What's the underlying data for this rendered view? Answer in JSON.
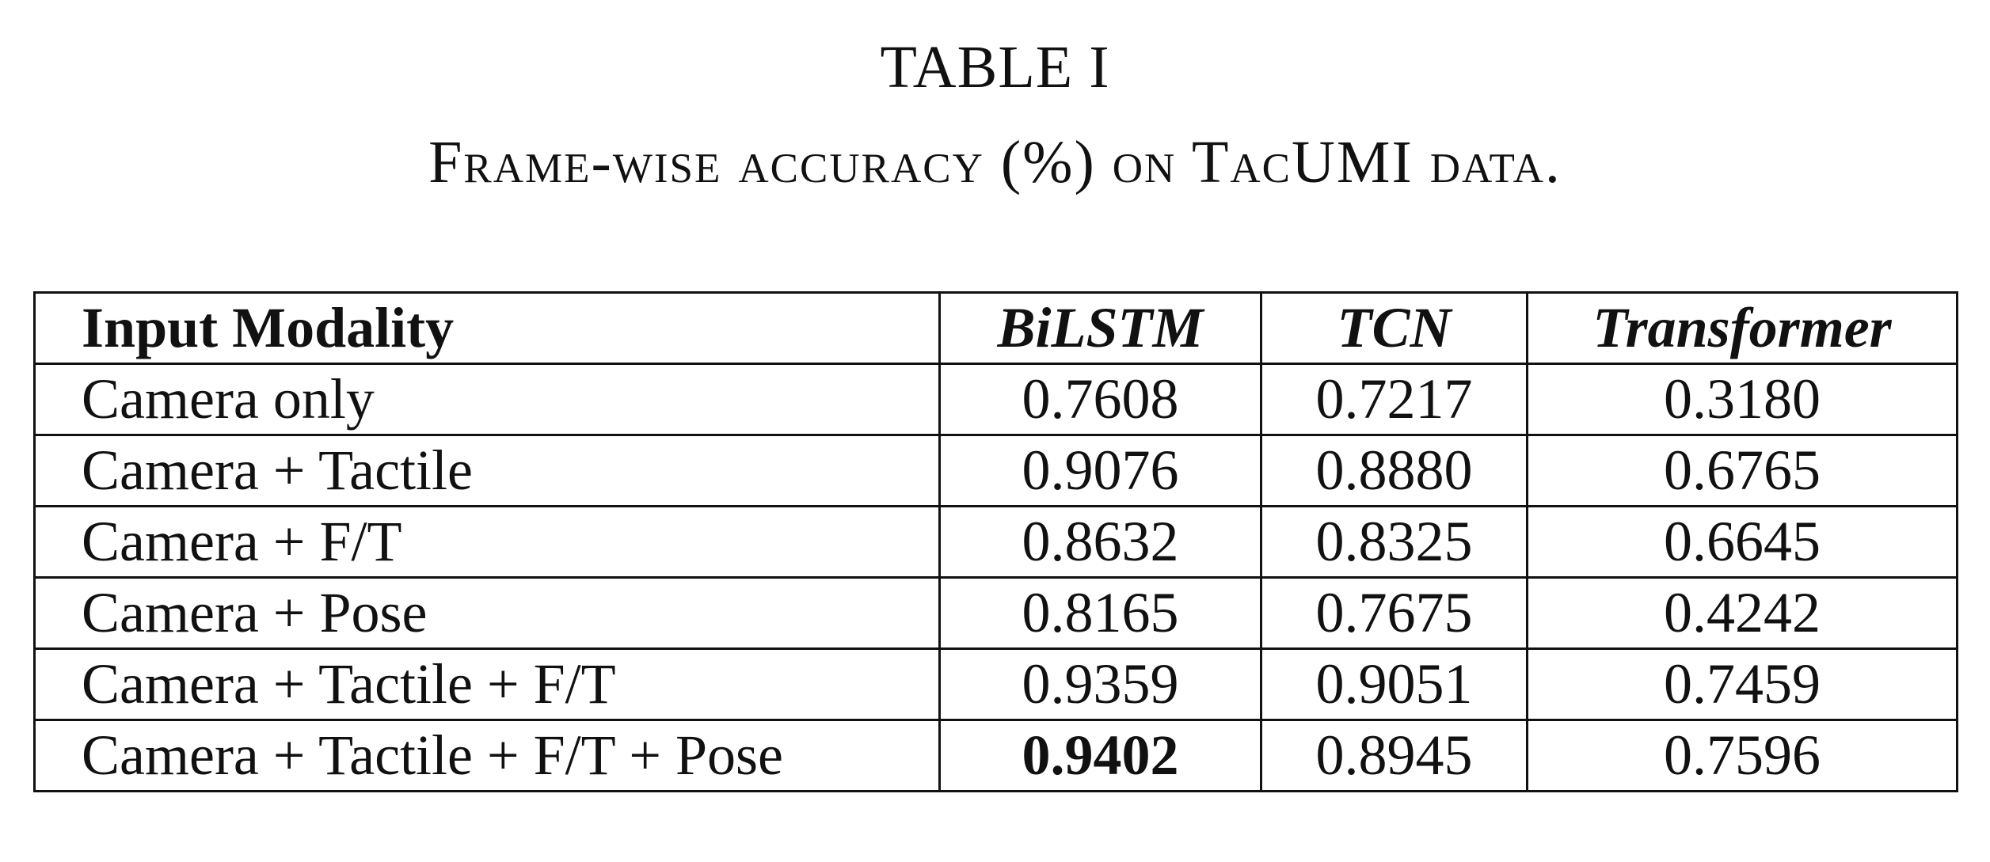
{
  "caption": {
    "label": "TABLE I",
    "title": "Frame-wise accuracy (%) on TacUMI data."
  },
  "chart_data": {
    "type": "table",
    "columns": [
      "Input Modality",
      "BiLSTM",
      "TCN",
      "Transformer"
    ],
    "rows": [
      {
        "modality": "Camera only",
        "values": [
          "0.7608",
          "0.7217",
          "0.3180"
        ]
      },
      {
        "modality": "Camera + Tactile",
        "values": [
          "0.9076",
          "0.8880",
          "0.6765"
        ]
      },
      {
        "modality": "Camera + F/T",
        "values": [
          "0.8632",
          "0.8325",
          "0.6645"
        ]
      },
      {
        "modality": "Camera + Pose",
        "values": [
          "0.8165",
          "0.7675",
          "0.4242"
        ]
      },
      {
        "modality": "Camera + Tactile + F/T",
        "values": [
          "0.9359",
          "0.9051",
          "0.7459"
        ]
      },
      {
        "modality": "Camera + Tactile + F/T + Pose",
        "values": [
          "0.9402",
          "0.8945",
          "0.7596"
        ]
      }
    ],
    "best": {
      "row": 5,
      "col": 0
    }
  }
}
